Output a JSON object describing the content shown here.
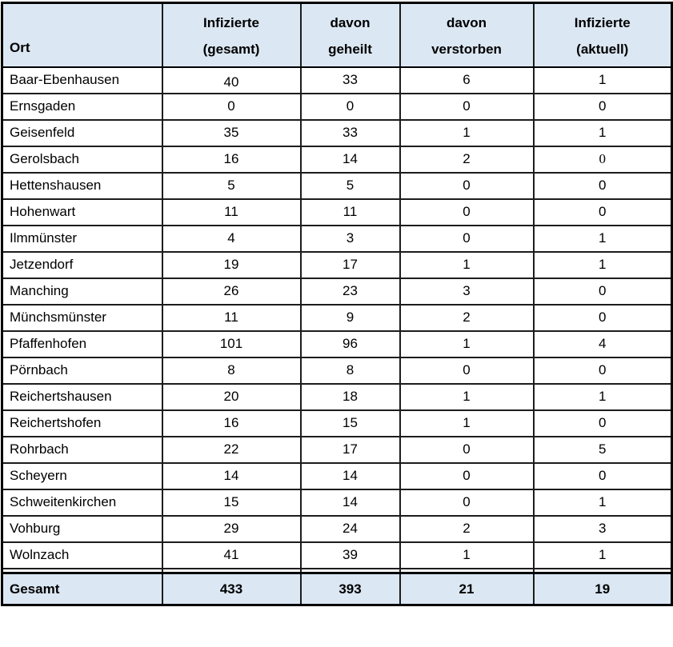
{
  "table": {
    "header": {
      "ort": "Ort",
      "cols": [
        {
          "line1": "Infizierte",
          "line2": "(gesamt)"
        },
        {
          "line1": "davon",
          "line2": "geheilt"
        },
        {
          "line1": "davon",
          "line2": "verstorben"
        },
        {
          "line1": "Infizierte",
          "line2": "(aktuell)"
        }
      ]
    },
    "rows": [
      {
        "ort": "Baar-Ebenhausen",
        "values": [
          "40",
          "33",
          "6",
          "1"
        ]
      },
      {
        "ort": "Ernsgaden",
        "values": [
          "0",
          "0",
          "0",
          "0"
        ]
      },
      {
        "ort": "Geisenfeld",
        "values": [
          "35",
          "33",
          "1",
          "1"
        ]
      },
      {
        "ort": "Gerolsbach",
        "values": [
          "16",
          "14",
          "2",
          "0"
        ]
      },
      {
        "ort": "Hettenshausen",
        "values": [
          "5",
          "5",
          "0",
          "0"
        ]
      },
      {
        "ort": "Hohenwart",
        "values": [
          "11",
          "11",
          "0",
          "0"
        ]
      },
      {
        "ort": "Ilmmünster",
        "values": [
          "4",
          "3",
          "0",
          "1"
        ]
      },
      {
        "ort": "Jetzendorf",
        "values": [
          "19",
          "17",
          "1",
          "1"
        ]
      },
      {
        "ort": "Manching",
        "values": [
          "26",
          "23",
          "3",
          "0"
        ]
      },
      {
        "ort": "Münchsmünster",
        "values": [
          "11",
          "9",
          "2",
          "0"
        ]
      },
      {
        "ort": "Pfaffenhofen",
        "values": [
          "101",
          "96",
          "1",
          "4"
        ]
      },
      {
        "ort": "Pörnbach",
        "values": [
          "8",
          "8",
          "0",
          "0"
        ]
      },
      {
        "ort": "Reichertshausen",
        "values": [
          "20",
          "18",
          "1",
          "1"
        ]
      },
      {
        "ort": "Reichertshofen",
        "values": [
          "16",
          "15",
          "1",
          "0"
        ]
      },
      {
        "ort": "Rohrbach",
        "values": [
          "22",
          "17",
          "0",
          "5"
        ]
      },
      {
        "ort": "Scheyern",
        "values": [
          "14",
          "14",
          "0",
          "0"
        ]
      },
      {
        "ort": "Schweitenkirchen",
        "values": [
          "15",
          "14",
          "0",
          "1"
        ]
      },
      {
        "ort": "Vohburg",
        "values": [
          "29",
          "24",
          "2",
          "3"
        ]
      },
      {
        "ort": "Wolnzach",
        "values": [
          "41",
          "39",
          "1",
          "1"
        ]
      }
    ],
    "footer": {
      "label": "Gesamt",
      "values": [
        "433",
        "393",
        "21",
        "19"
      ]
    }
  },
  "colors": {
    "header_bg": "#dbe7f3",
    "border": "#000000",
    "text": "#000000"
  }
}
